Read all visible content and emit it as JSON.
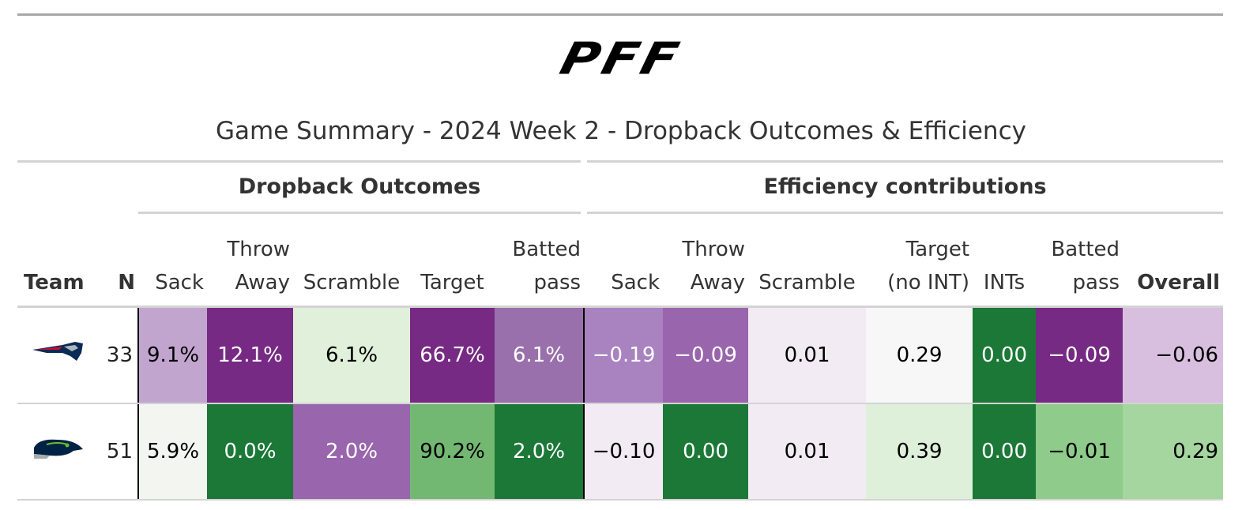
{
  "header": {
    "logo": "PFF",
    "title": "Game Summary - 2024 Week 2 - Dropback Outcomes & Efficiency"
  },
  "table": {
    "spanners": [
      "Dropback Outcomes",
      "Efficiency contributions"
    ],
    "columns": [
      "Team",
      "N",
      "Sack",
      "Throw Away",
      "Scramble",
      "Target",
      "Batted pass",
      "Sack",
      "Throw Away",
      "Scramble",
      "Target (no INT)",
      "INTs",
      "Batted pass",
      "Overall"
    ],
    "rows": [
      {
        "n": "33",
        "cells": [
          {
            "text": "9.1%",
            "bg": "#c2a5cf",
            "fg": "#000000"
          },
          {
            "text": "12.1%",
            "bg": "#762a83",
            "fg": "#ffffff"
          },
          {
            "text": "6.1%",
            "bg": "#e0f0db",
            "fg": "#000000"
          },
          {
            "text": "66.7%",
            "bg": "#762a83",
            "fg": "#ffffff"
          },
          {
            "text": "6.1%",
            "bg": "#9970ab",
            "fg": "#ffffff"
          },
          {
            "text": "−0.19",
            "bg": "#a883bf",
            "fg": "#ffffff"
          },
          {
            "text": "−0.09",
            "bg": "#9965ac",
            "fg": "#ffffff"
          },
          {
            "text": "0.01",
            "bg": "#f3ebf4",
            "fg": "#000000"
          },
          {
            "text": "0.29",
            "bg": "#f7f7f7",
            "fg": "#000000"
          },
          {
            "text": "0.00",
            "bg": "#1b7837",
            "fg": "#ffffff"
          },
          {
            "text": "−0.09",
            "bg": "#762a83",
            "fg": "#ffffff"
          },
          {
            "text": "−0.06",
            "bg": "#d9bfdf",
            "fg": "#000000"
          }
        ]
      },
      {
        "n": "51",
        "cells": [
          {
            "text": "5.9%",
            "bg": "#f2f5f0",
            "fg": "#000000"
          },
          {
            "text": "0.0%",
            "bg": "#1b7837",
            "fg": "#ffffff"
          },
          {
            "text": "2.0%",
            "bg": "#9965ac",
            "fg": "#ffffff"
          },
          {
            "text": "90.2%",
            "bg": "#73b872",
            "fg": "#000000"
          },
          {
            "text": "2.0%",
            "bg": "#1b7837",
            "fg": "#ffffff"
          },
          {
            "text": "−0.10",
            "bg": "#f3ebf4",
            "fg": "#000000"
          },
          {
            "text": "0.00",
            "bg": "#1b7837",
            "fg": "#ffffff"
          },
          {
            "text": "0.01",
            "bg": "#f3ebf4",
            "fg": "#000000"
          },
          {
            "text": "0.39",
            "bg": "#dff0da",
            "fg": "#000000"
          },
          {
            "text": "0.00",
            "bg": "#1b7837",
            "fg": "#ffffff"
          },
          {
            "text": "−0.01",
            "bg": "#8fcb8a",
            "fg": "#000000"
          },
          {
            "text": "0.29",
            "bg": "#a5d69f",
            "fg": "#000000"
          }
        ]
      }
    ]
  }
}
